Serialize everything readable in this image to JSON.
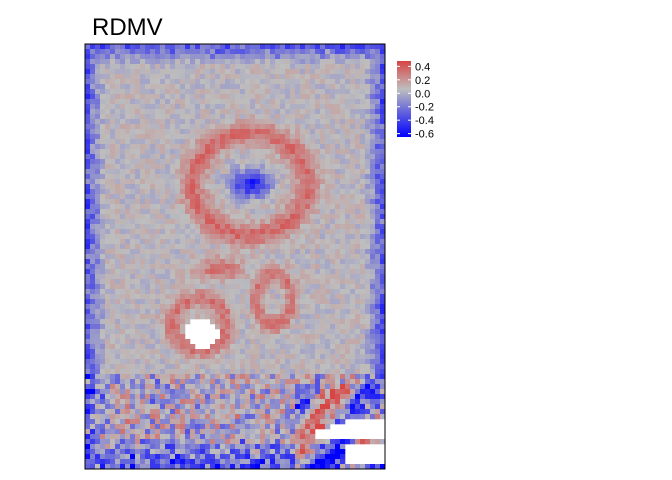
{
  "chart_data": {
    "type": "heatmap",
    "title": "RDMV",
    "xlabel": "",
    "ylabel": "",
    "grid": false,
    "legend_placement": "right",
    "colorbar": {
      "ticks": [
        "0.4",
        "0.2",
        "0.0",
        "-0.2",
        "-0.4",
        "-0.6"
      ],
      "tick_values": [
        0.4,
        0.2,
        0.0,
        -0.2,
        -0.4,
        -0.6
      ],
      "range": [
        -0.65,
        0.48
      ],
      "colors": {
        "low": "#0000ff",
        "mid": "#bebebe",
        "high": "#d94444"
      }
    },
    "grid_size": {
      "cols": 60,
      "rows": 85
    },
    "features": {
      "upper_ring": {
        "center": [
          0.55,
          0.33
        ],
        "radius": [
          0.2,
          0.12
        ],
        "value": 0.32
      },
      "upper_core": {
        "center": [
          0.55,
          0.33
        ],
        "value": -0.55
      },
      "middle_blob": {
        "center": [
          0.45,
          0.53
        ],
        "value": 0.35
      },
      "lower_left_ring": {
        "center": [
          0.38,
          0.66
        ],
        "value": 0.3
      },
      "lower_right_ring": {
        "center": [
          0.63,
          0.6
        ],
        "value": 0.28
      },
      "border": {
        "value": -0.45
      },
      "missing": [
        {
          "region": "lower-left hole",
          "center": [
            0.39,
            0.68
          ]
        },
        {
          "region": "bottom-right notch",
          "center": [
            0.85,
            0.93
          ]
        }
      ]
    }
  }
}
